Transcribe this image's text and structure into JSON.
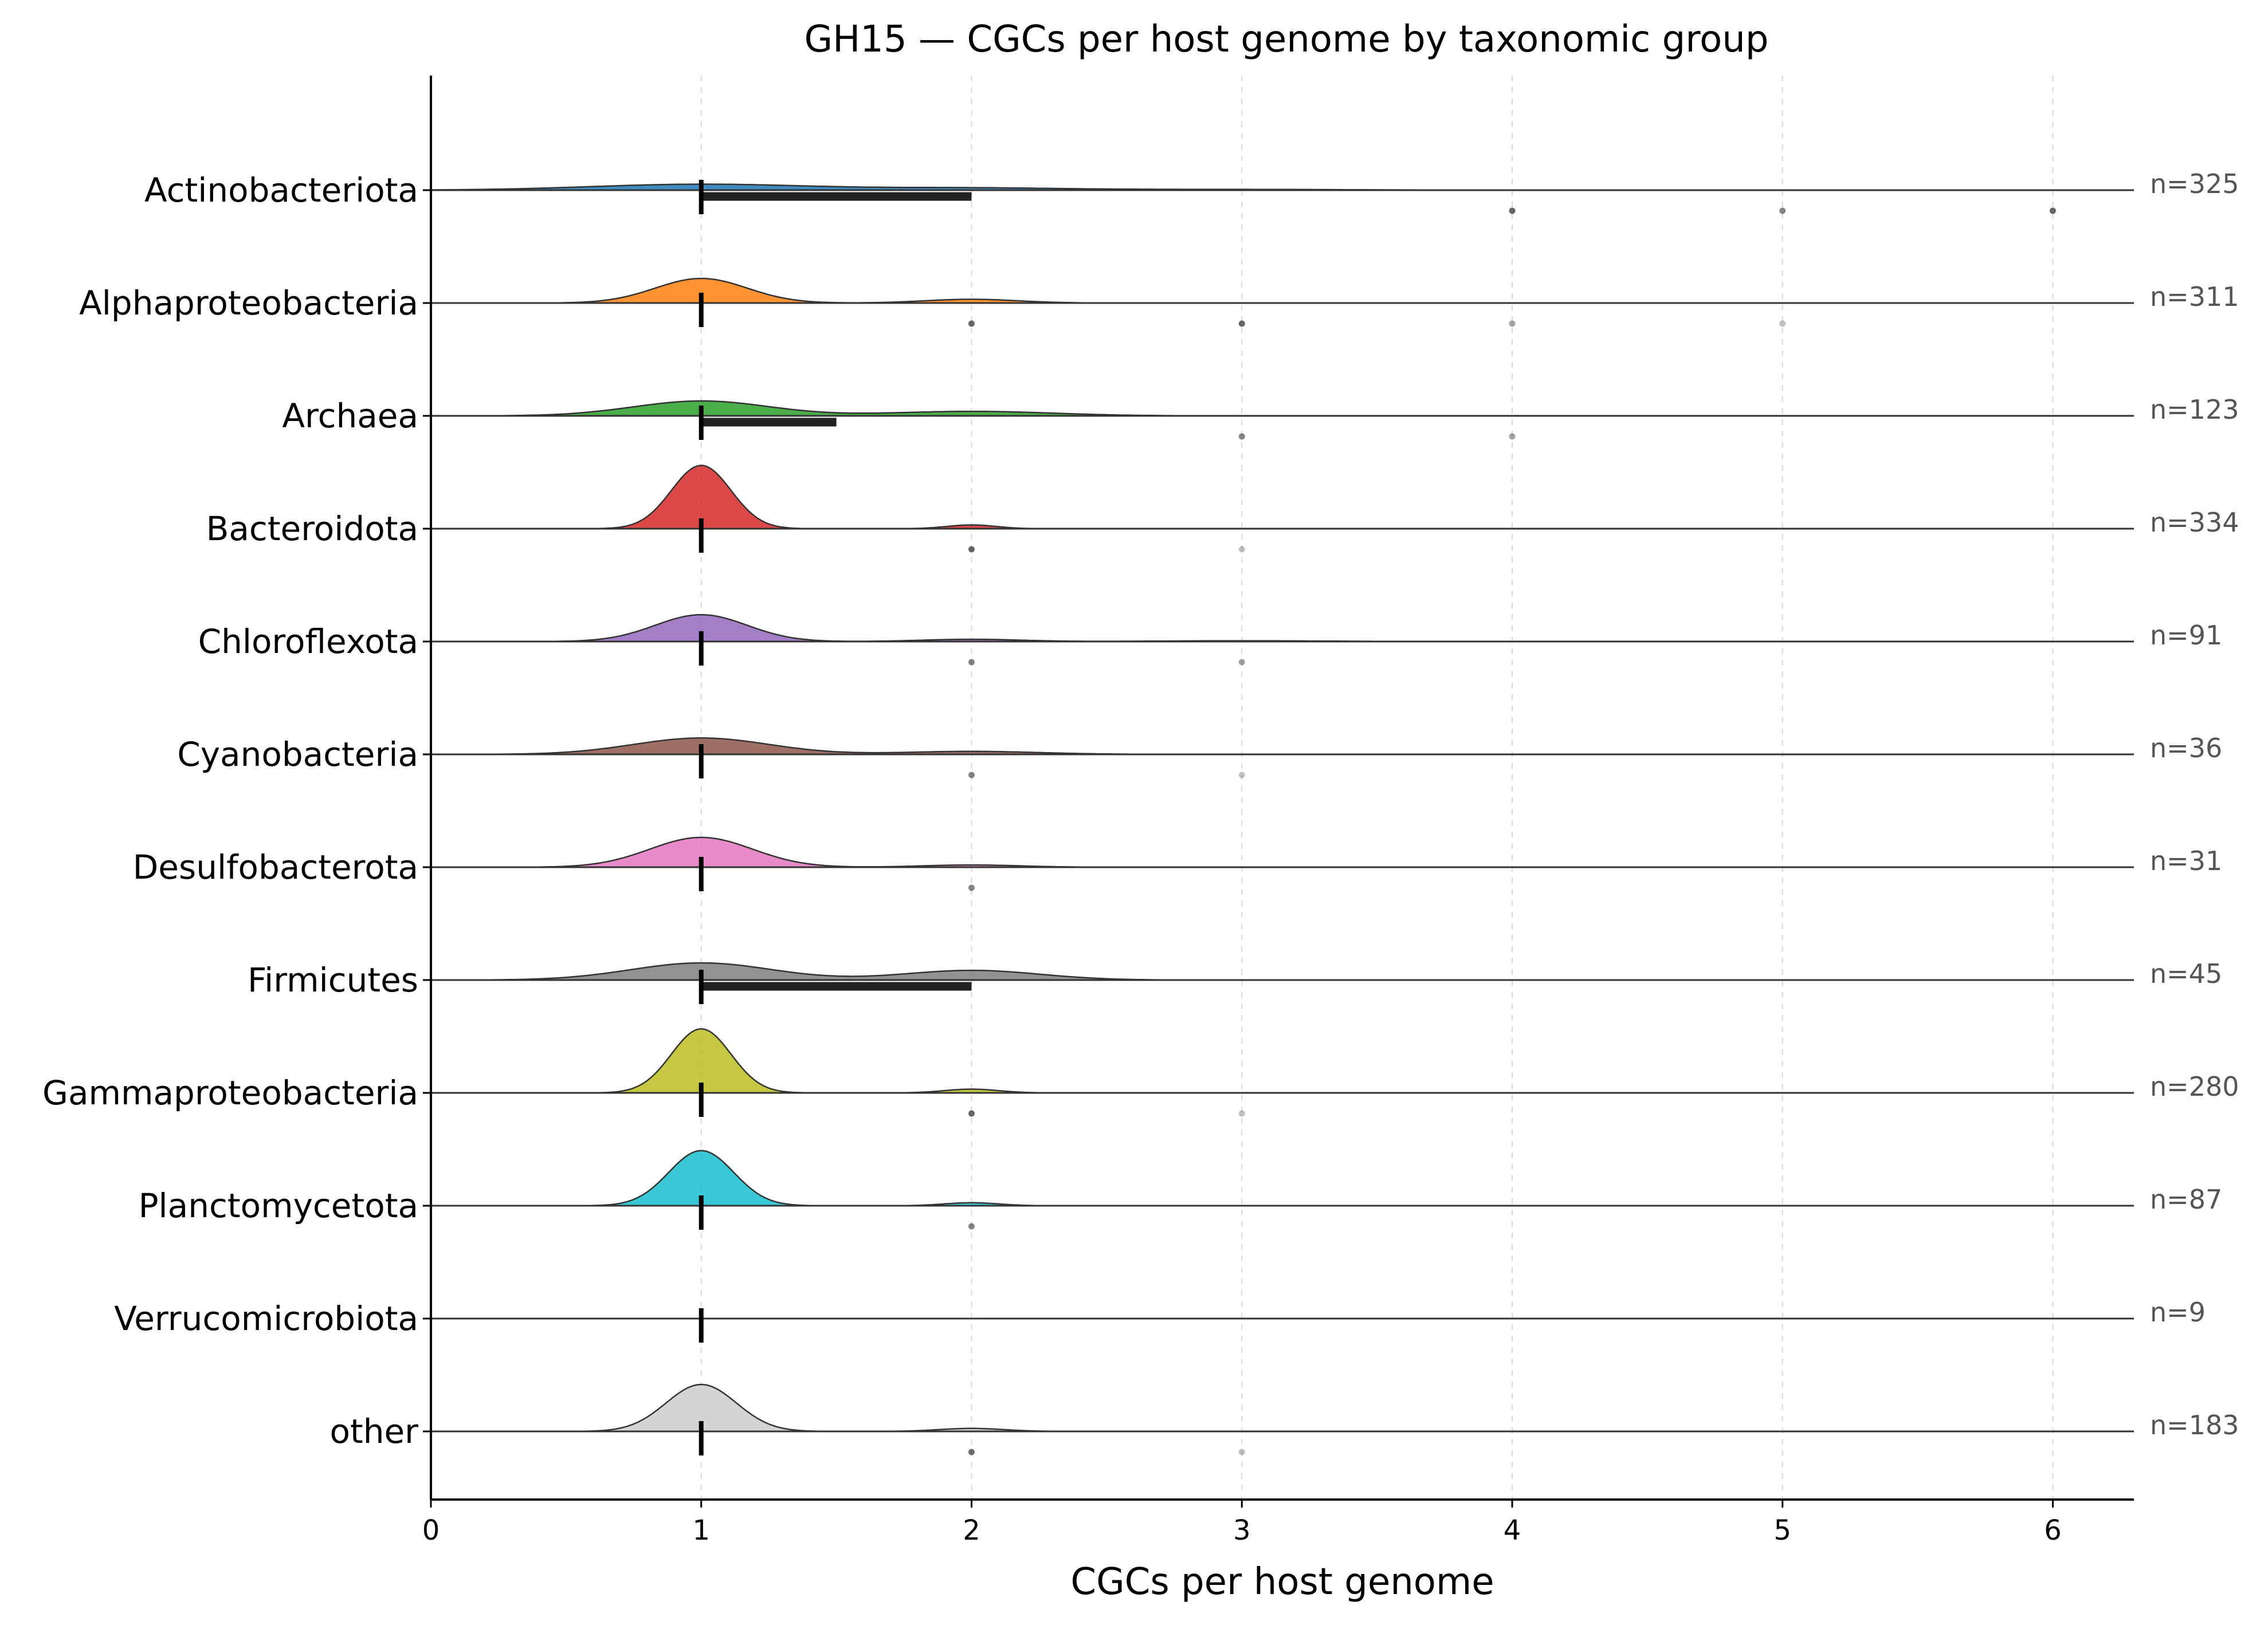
{
  "chart_data": {
    "type": "ridgeline",
    "title": "GH15 — CGCs per host genome by taxonomic group",
    "xlabel": "CGCs per host genome",
    "ylabel": "",
    "xlim": [
      0,
      6.3
    ],
    "xticks": [
      0,
      1,
      2,
      3,
      4,
      5,
      6
    ],
    "grid": "x dashed",
    "groups": [
      {
        "name": "Actinobacteriota",
        "n_label": "n=325",
        "color": "#1f77b4",
        "median": 1,
        "iqr": [
          1,
          2
        ],
        "peaks": [
          {
            "x": 1,
            "h": 0.08,
            "s": 0.4
          },
          {
            "x": 2,
            "h": 0.03,
            "s": 0.35
          },
          {
            "x": 3,
            "h": 0.01,
            "s": 0.4
          }
        ],
        "outliers": [
          {
            "x": 4,
            "a": 0.75
          },
          {
            "x": 5,
            "a": 0.6
          },
          {
            "x": 6,
            "a": 0.75
          }
        ]
      },
      {
        "name": "Alphaproteobacteria",
        "n_label": "n=311",
        "color": "#ff7f0e",
        "median": 1,
        "iqr": [
          1,
          1
        ],
        "peaks": [
          {
            "x": 1,
            "h": 0.33,
            "s": 0.17
          },
          {
            "x": 2,
            "h": 0.05,
            "s": 0.17
          }
        ],
        "outliers": [
          {
            "x": 2,
            "a": 0.75
          },
          {
            "x": 3,
            "a": 0.75
          },
          {
            "x": 4,
            "a": 0.45
          },
          {
            "x": 5,
            "a": 0.3
          }
        ]
      },
      {
        "name": "Archaea",
        "n_label": "n=123",
        "color": "#2ca02c",
        "median": 1,
        "iqr": [
          1,
          1.5
        ],
        "peaks": [
          {
            "x": 1,
            "h": 0.2,
            "s": 0.25
          },
          {
            "x": 2,
            "h": 0.06,
            "s": 0.3
          }
        ],
        "outliers": [
          {
            "x": 3,
            "a": 0.6
          },
          {
            "x": 4,
            "a": 0.45
          }
        ]
      },
      {
        "name": "Bacteroidota",
        "n_label": "n=334",
        "color": "#d62728",
        "median": 1,
        "iqr": [
          1,
          1
        ],
        "peaks": [
          {
            "x": 1,
            "h": 0.85,
            "s": 0.11
          },
          {
            "x": 2,
            "h": 0.05,
            "s": 0.09
          }
        ],
        "outliers": [
          {
            "x": 2,
            "a": 0.75
          },
          {
            "x": 3,
            "a": 0.3
          }
        ]
      },
      {
        "name": "Chloroflexota",
        "n_label": "n=91",
        "color": "#9467bd",
        "median": 1,
        "iqr": [
          1,
          1
        ],
        "peaks": [
          {
            "x": 1,
            "h": 0.36,
            "s": 0.17
          },
          {
            "x": 2,
            "h": 0.03,
            "s": 0.18
          },
          {
            "x": 3,
            "h": 0.01,
            "s": 0.3
          }
        ],
        "outliers": [
          {
            "x": 2,
            "a": 0.6
          },
          {
            "x": 3,
            "a": 0.45
          }
        ]
      },
      {
        "name": "Cyanobacteria",
        "n_label": "n=36",
        "color": "#8c564b",
        "median": 1,
        "iqr": [
          1,
          1
        ],
        "peaks": [
          {
            "x": 1,
            "h": 0.22,
            "s": 0.25
          },
          {
            "x": 2,
            "h": 0.04,
            "s": 0.25
          }
        ],
        "outliers": [
          {
            "x": 2,
            "a": 0.6
          },
          {
            "x": 3,
            "a": 0.3
          }
        ]
      },
      {
        "name": "Desulfobacterota",
        "n_label": "n=31",
        "color": "#e377c2",
        "median": 1,
        "iqr": [
          1,
          1
        ],
        "peaks": [
          {
            "x": 1,
            "h": 0.4,
            "s": 0.19
          },
          {
            "x": 2,
            "h": 0.03,
            "s": 0.18
          }
        ],
        "outliers": [
          {
            "x": 2,
            "a": 0.6
          }
        ]
      },
      {
        "name": "Firmicutes",
        "n_label": "n=45",
        "color": "#7f7f7f",
        "median": 1,
        "iqr": [
          1,
          2
        ],
        "peaks": [
          {
            "x": 1,
            "h": 0.23,
            "s": 0.26
          },
          {
            "x": 2,
            "h": 0.13,
            "s": 0.25
          }
        ],
        "outliers": []
      },
      {
        "name": "Gammaproteobacteria",
        "n_label": "n=280",
        "color": "#bcbd22",
        "median": 1,
        "iqr": [
          1,
          1
        ],
        "peaks": [
          {
            "x": 1,
            "h": 0.86,
            "s": 0.11
          },
          {
            "x": 2,
            "h": 0.05,
            "s": 0.1
          }
        ],
        "outliers": [
          {
            "x": 2,
            "a": 0.75
          },
          {
            "x": 3,
            "a": 0.3
          }
        ]
      },
      {
        "name": "Planctomycetota",
        "n_label": "n=87",
        "color": "#17becf",
        "median": 1,
        "iqr": [
          1,
          1
        ],
        "peaks": [
          {
            "x": 1,
            "h": 0.74,
            "s": 0.12
          },
          {
            "x": 2,
            "h": 0.04,
            "s": 0.1
          }
        ],
        "outliers": [
          {
            "x": 2,
            "a": 0.6
          }
        ]
      },
      {
        "name": "Verrucomicrobiota",
        "n_label": "n=9",
        "color": "#1f77b4",
        "median": 1,
        "iqr": [
          1,
          1
        ],
        "peaks": [],
        "outliers": []
      },
      {
        "name": "other",
        "n_label": "n=183",
        "color": "#cccccc",
        "median": 1,
        "iqr": [
          1,
          1
        ],
        "peaks": [
          {
            "x": 1,
            "h": 0.63,
            "s": 0.13
          },
          {
            "x": 2,
            "h": 0.04,
            "s": 0.12
          }
        ],
        "outliers": [
          {
            "x": 2,
            "a": 0.7
          },
          {
            "x": 3,
            "a": 0.3
          }
        ]
      }
    ]
  }
}
